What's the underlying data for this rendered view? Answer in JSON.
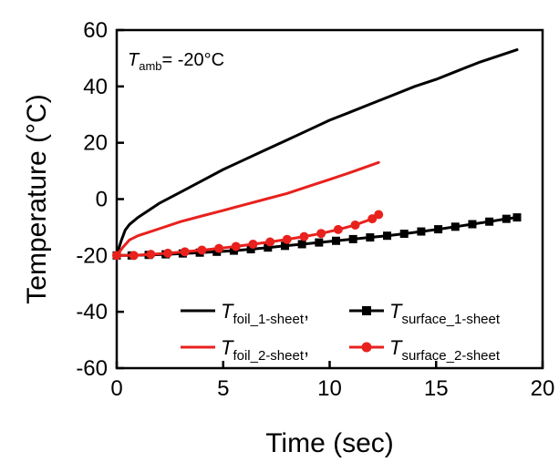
{
  "chart_data": {
    "type": "line",
    "xlabel": "Time (sec)",
    "ylabel": "Temperature (°C)",
    "xlim": [
      0,
      20
    ],
    "ylim": [
      -60,
      60
    ],
    "xticks": [
      0,
      5,
      10,
      15,
      20
    ],
    "yticks": [
      -60,
      -40,
      -20,
      0,
      20,
      40,
      60
    ],
    "grid": false,
    "legend_position": "bottom-right",
    "annotation": {
      "base": "T",
      "sub": "amb",
      "rest": "= -20°C"
    },
    "series": [
      {
        "name": "T_foil_1-sheet",
        "legend_base": "T",
        "legend_sub": "foil_1-sheet",
        "legend_suffix": ",",
        "color": "#000000",
        "marker": "none",
        "x": [
          0,
          0.2,
          0.4,
          0.6,
          1,
          1.5,
          2,
          3,
          4,
          5,
          6,
          7,
          8,
          9,
          10,
          11,
          12,
          13,
          14,
          15,
          16,
          17,
          18,
          18.8
        ],
        "y": [
          -20,
          -15,
          -11,
          -9,
          -6.5,
          -4,
          -1.5,
          2.5,
          6.5,
          10.5,
          14,
          17.5,
          21,
          24.5,
          28,
          31,
          34,
          37,
          40,
          42.5,
          45.5,
          48.5,
          51,
          53
        ]
      },
      {
        "name": "T_surface_1-sheet",
        "legend_base": "T",
        "legend_sub": "surface_1-sheet",
        "legend_suffix": "",
        "color": "#000000",
        "marker": "square",
        "x": [
          0,
          0.7,
          1.5,
          2.3,
          3.1,
          3.9,
          4.7,
          5.5,
          6.3,
          7.1,
          7.9,
          8.7,
          9.5,
          10.3,
          11.1,
          11.9,
          12.7,
          13.5,
          14.3,
          15.1,
          15.9,
          16.7,
          17.5,
          18.3,
          18.8
        ],
        "y": [
          -20,
          -20,
          -19.8,
          -19.6,
          -19.3,
          -19,
          -18.7,
          -18.3,
          -17.8,
          -17.2,
          -16.6,
          -16,
          -15.4,
          -14.8,
          -14.2,
          -13.6,
          -13,
          -12.3,
          -11.5,
          -10.7,
          -9.8,
          -8.9,
          -8,
          -7,
          -6.5
        ]
      },
      {
        "name": "T_foil_2-sheet",
        "legend_base": "T",
        "legend_sub": "foil_2-sheet",
        "legend_suffix": ",",
        "color": "#e8211d",
        "marker": "none",
        "x": [
          0,
          0.3,
          0.6,
          1,
          2,
          3,
          4,
          5,
          6,
          7,
          8,
          9,
          10,
          11,
          12.3
        ],
        "y": [
          -20,
          -17,
          -14.5,
          -13,
          -10.5,
          -8,
          -6,
          -4,
          -2,
          0,
          2,
          4.5,
          7,
          9.5,
          13
        ]
      },
      {
        "name": "T_surface_2-sheet",
        "legend_base": "T",
        "legend_sub": "surface_2-sheet",
        "legend_suffix": "",
        "color": "#e8211d",
        "marker": "circle",
        "x": [
          0,
          0.8,
          1.6,
          2.4,
          3.2,
          4,
          4.8,
          5.6,
          6.4,
          7.2,
          8,
          8.8,
          9.6,
          10.4,
          11.2,
          12,
          12.3
        ],
        "y": [
          -20,
          -20,
          -19.6,
          -19.2,
          -18.7,
          -18.1,
          -17.5,
          -16.8,
          -16,
          -15.2,
          -14.3,
          -13.3,
          -12.2,
          -10.8,
          -9.2,
          -7,
          -5.5
        ]
      }
    ]
  }
}
